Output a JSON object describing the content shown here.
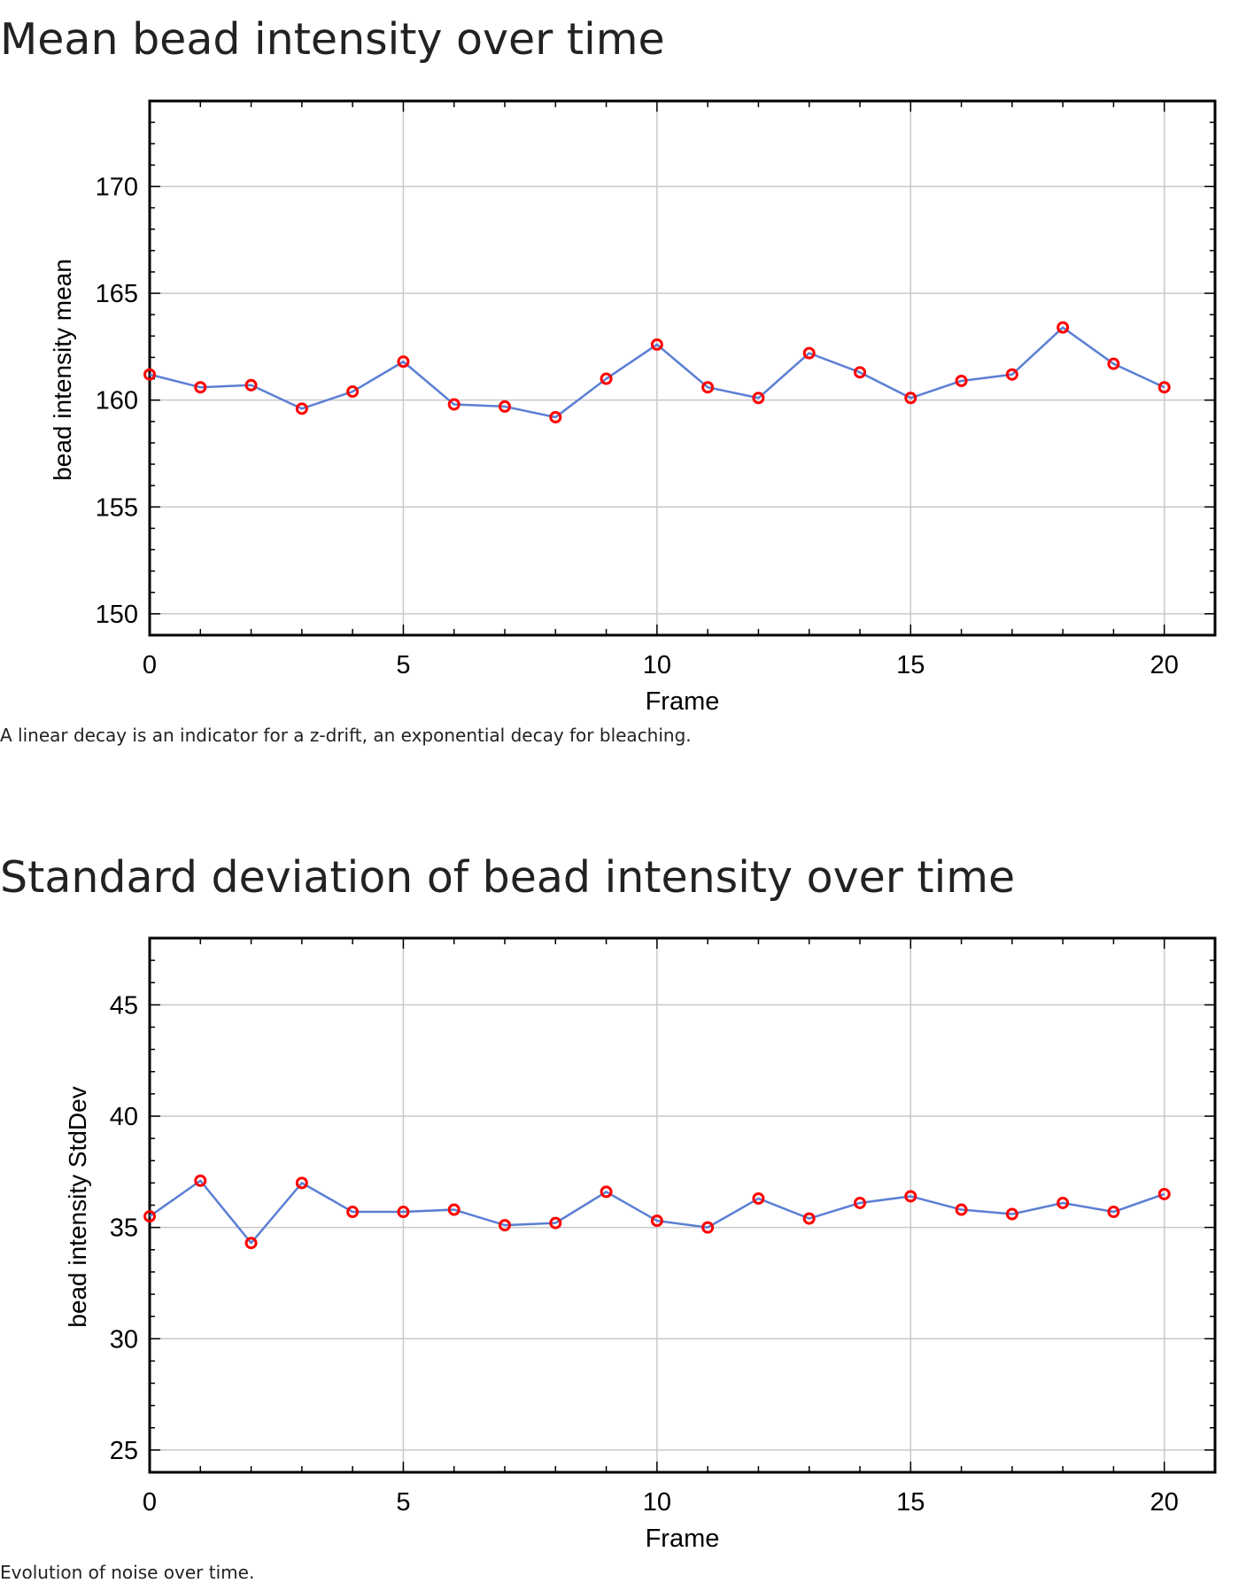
{
  "sections": [
    {
      "heading": "Mean bead intensity over time",
      "caption": "A linear decay is an indicator for a z-drift, an exponential decay for bleaching.",
      "chart_data": {
        "type": "line",
        "xlabel": "Frame",
        "ylabel": "bead intensity mean",
        "xlim": [
          0,
          21
        ],
        "ylim": [
          149,
          174
        ],
        "xticks": [
          0,
          5,
          10,
          15,
          20
        ],
        "yticks": [
          150,
          155,
          160,
          165,
          170
        ],
        "grid": true,
        "x": [
          0,
          1,
          2,
          3,
          4,
          5,
          6,
          7,
          8,
          9,
          10,
          11,
          12,
          13,
          14,
          15,
          16,
          17,
          18,
          19,
          20
        ],
        "values": [
          161.2,
          160.6,
          160.7,
          159.6,
          160.4,
          161.8,
          159.8,
          159.7,
          159.2,
          161.0,
          162.6,
          160.6,
          160.1,
          162.2,
          161.3,
          160.1,
          160.9,
          161.2,
          163.4,
          161.7,
          160.6
        ],
        "line_color": "#5b7fd4",
        "marker_color": "#ff0000"
      }
    },
    {
      "heading": "Standard deviation of bead intensity over time",
      "caption": "Evolution of noise over time.",
      "chart_data": {
        "type": "line",
        "xlabel": "Frame",
        "ylabel": "bead intensity StdDev",
        "xlim": [
          0,
          21
        ],
        "ylim": [
          24,
          48
        ],
        "xticks": [
          0,
          5,
          10,
          15,
          20
        ],
        "yticks": [
          25,
          30,
          35,
          40,
          45
        ],
        "grid": true,
        "x": [
          0,
          1,
          2,
          3,
          4,
          5,
          6,
          7,
          8,
          9,
          10,
          11,
          12,
          13,
          14,
          15,
          16,
          17,
          18,
          19,
          20
        ],
        "values": [
          35.5,
          37.1,
          34.3,
          37.0,
          35.7,
          35.7,
          35.8,
          35.1,
          35.2,
          36.6,
          35.3,
          35.0,
          36.3,
          35.4,
          36.1,
          36.4,
          35.8,
          35.6,
          36.1,
          35.7,
          36.5
        ],
        "line_color": "#5b7fd4",
        "marker_color": "#ff0000"
      }
    }
  ]
}
